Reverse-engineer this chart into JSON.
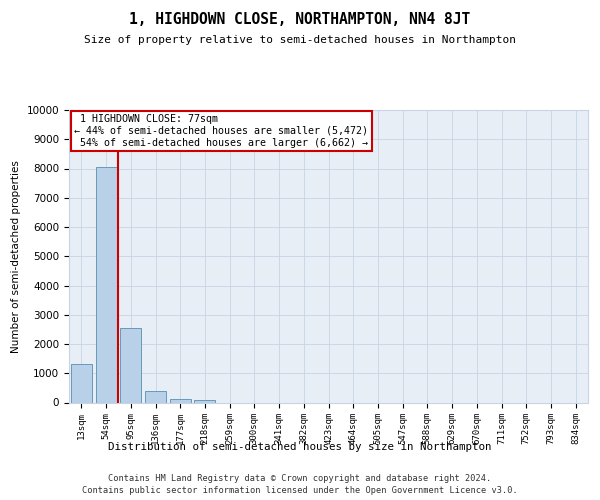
{
  "title": "1, HIGHDOWN CLOSE, NORTHAMPTON, NN4 8JT",
  "subtitle": "Size of property relative to semi-detached houses in Northampton",
  "xlabel_bottom": "Distribution of semi-detached houses by size in Northampton",
  "ylabel": "Number of semi-detached properties",
  "footer_line1": "Contains HM Land Registry data © Crown copyright and database right 2024.",
  "footer_line2": "Contains public sector information licensed under the Open Government Licence v3.0.",
  "categories": [
    "13sqm",
    "54sqm",
    "95sqm",
    "136sqm",
    "177sqm",
    "218sqm",
    "259sqm",
    "300sqm",
    "341sqm",
    "382sqm",
    "423sqm",
    "464sqm",
    "505sqm",
    "547sqm",
    "588sqm",
    "629sqm",
    "670sqm",
    "711sqm",
    "752sqm",
    "793sqm",
    "834sqm"
  ],
  "bar_values": [
    1320,
    8050,
    2530,
    390,
    130,
    80,
    0,
    0,
    0,
    0,
    0,
    0,
    0,
    0,
    0,
    0,
    0,
    0,
    0,
    0,
    0
  ],
  "bar_color": "#b8d0e8",
  "bar_edgecolor": "#6699bb",
  "grid_color": "#c8d4e4",
  "bg_color": "#e8eef6",
  "red_line_x": 1.5,
  "property_label": "1 HIGHDOWN CLOSE: 77sqm",
  "pct_smaller": 44,
  "count_smaller": "5,472",
  "pct_larger": 54,
  "count_larger": "6,662",
  "annotation_box_color": "#ffffff",
  "annotation_box_edgecolor": "#cc0000",
  "red_line_color": "#cc0000",
  "ylim": [
    0,
    10000
  ],
  "yticks": [
    0,
    1000,
    2000,
    3000,
    4000,
    5000,
    6000,
    7000,
    8000,
    9000,
    10000
  ]
}
